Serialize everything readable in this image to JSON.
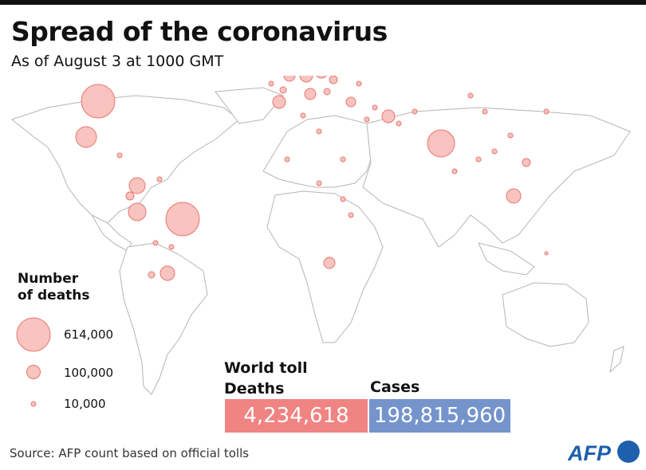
{
  "header": {
    "title": "Spread of the coronavirus",
    "subtitle": "As of August 3 at 1000 GMT"
  },
  "legend": {
    "title_line1": "Number",
    "title_line2": "of deaths",
    "items": [
      {
        "label": "614,000",
        "value": 614000
      },
      {
        "label": "100,000",
        "value": 100000
      },
      {
        "label": "10,000",
        "value": 10000
      }
    ]
  },
  "world_toll": {
    "title": "World toll",
    "deaths_label": "Deaths",
    "deaths_value": "4,234,618",
    "cases_label": "Cases",
    "cases_value": "198,815,960"
  },
  "colors": {
    "deaths": "#f08482",
    "cases": "#7594cc",
    "bubble_fill": "#f9c3bf",
    "bubble_stroke": "#e8766f",
    "land_stroke": "#b5b5b5"
  },
  "source": "Source: AFP count based on official tolls",
  "logo": "AFP"
}
